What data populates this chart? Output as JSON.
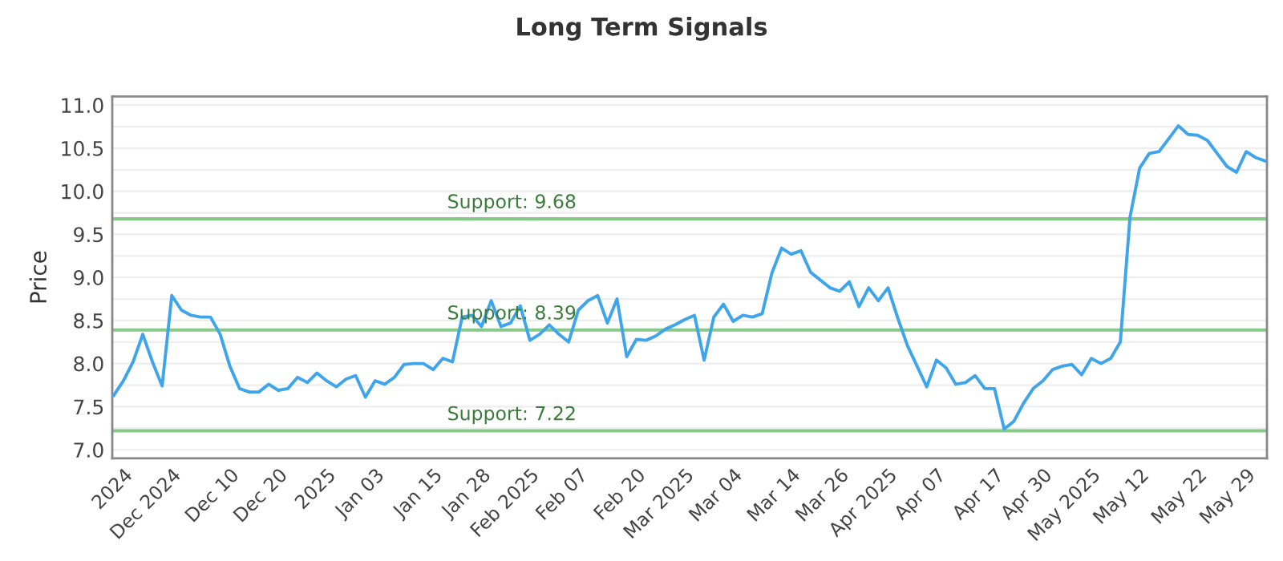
{
  "chart_data": {
    "type": "line",
    "title": "Long Term Signals",
    "ylabel": "Price",
    "categories": [
      null,
      "2024",
      null,
      null,
      null,
      null,
      "Dec 2024",
      null,
      null,
      null,
      null,
      null,
      "Dec 10",
      null,
      null,
      null,
      null,
      "Dec 20",
      null,
      null,
      null,
      null,
      "2025",
      null,
      null,
      null,
      null,
      "Jan 03",
      null,
      null,
      null,
      null,
      null,
      "Jan 15",
      null,
      null,
      null,
      null,
      "Jan 28",
      null,
      null,
      null,
      null,
      "Feb 2025",
      null,
      null,
      null,
      null,
      "Feb 07",
      null,
      null,
      null,
      null,
      null,
      "Feb 20",
      null,
      null,
      null,
      null,
      "Mar 2025",
      null,
      null,
      null,
      null,
      "Mar 04",
      null,
      null,
      null,
      null,
      null,
      "Mar 14",
      null,
      null,
      null,
      null,
      "Mar 26",
      null,
      null,
      null,
      null,
      "Apr 2025",
      null,
      null,
      null,
      null,
      "Apr 07",
      null,
      null,
      null,
      null,
      null,
      "Apr 17",
      null,
      null,
      null,
      null,
      "Apr 30",
      null,
      null,
      null,
      null,
      "May 2025",
      null,
      null,
      null,
      null,
      "May 12",
      null,
      null,
      null,
      null,
      null,
      "May 22",
      null,
      null,
      null,
      null,
      "May 29",
      null,
      null
    ],
    "series": [
      {
        "color": "#3ea5ec",
        "values": [
          7.63,
          7.8,
          8.02,
          8.34,
          8.02,
          7.74,
          8.79,
          8.62,
          8.56,
          8.54,
          8.54,
          8.34,
          7.97,
          7.71,
          7.67,
          7.67,
          7.76,
          7.69,
          7.71,
          7.84,
          7.78,
          7.89,
          7.8,
          7.73,
          7.82,
          7.86,
          7.61,
          7.8,
          7.76,
          7.84,
          7.99,
          8.0,
          8.0,
          7.93,
          8.06,
          8.02,
          8.54,
          8.56,
          8.43,
          8.73,
          8.43,
          8.47,
          8.67,
          8.27,
          8.34,
          8.45,
          8.34,
          8.25,
          8.62,
          8.73,
          8.79,
          8.47,
          8.75,
          8.08,
          8.28,
          8.27,
          8.32,
          8.4,
          8.45,
          8.51,
          8.56,
          8.04,
          8.54,
          8.69,
          8.49,
          8.56,
          8.54,
          8.58,
          9.05,
          9.34,
          9.27,
          9.31,
          9.06,
          8.97,
          8.88,
          8.84,
          8.95,
          8.66,
          8.88,
          8.73,
          8.88,
          8.53,
          8.21,
          7.97,
          7.73,
          8.04,
          7.95,
          7.76,
          7.78,
          7.86,
          7.71,
          7.71,
          7.24,
          7.33,
          7.54,
          7.71,
          7.8,
          7.93,
          7.97,
          7.99,
          7.87,
          8.06,
          8.0,
          8.06,
          8.25,
          9.7,
          10.27,
          10.44,
          10.46,
          10.61,
          10.76,
          10.66,
          10.65,
          10.59,
          10.44,
          10.29,
          10.22,
          10.46,
          10.39,
          10.35
        ]
      }
    ],
    "ylim": [
      6.9,
      11.1
    ],
    "yticks": [
      {
        "value": 7.0,
        "label": "7.0"
      },
      {
        "value": 7.25,
        "label": null
      },
      {
        "value": 7.5,
        "label": "7.5"
      },
      {
        "value": 7.75,
        "label": null
      },
      {
        "value": 8.0,
        "label": "8.0"
      },
      {
        "value": 8.25,
        "label": null
      },
      {
        "value": 8.5,
        "label": "8.5"
      },
      {
        "value": 8.75,
        "label": null
      },
      {
        "value": 9.0,
        "label": "9.0"
      },
      {
        "value": 9.25,
        "label": null
      },
      {
        "value": 9.5,
        "label": "9.5"
      },
      {
        "value": 9.75,
        "label": null
      },
      {
        "value": 10.0,
        "label": "10.0"
      },
      {
        "value": 10.25,
        "label": null
      },
      {
        "value": 10.5,
        "label": "10.5"
      },
      {
        "value": 10.75,
        "label": null
      },
      {
        "value": 11.0,
        "label": "11.0"
      }
    ],
    "grid": "y",
    "marker": "none",
    "line_style": "solid",
    "ref_lines": [
      {
        "axis": "y",
        "value": 9.68,
        "label": "Support: 9.68",
        "color": "#88c888"
      },
      {
        "axis": "y",
        "value": 8.39,
        "label": "Support: 8.39",
        "color": "#88c888"
      },
      {
        "axis": "y",
        "value": 7.22,
        "label": "Support: 7.22",
        "color": "#88c888"
      }
    ]
  }
}
